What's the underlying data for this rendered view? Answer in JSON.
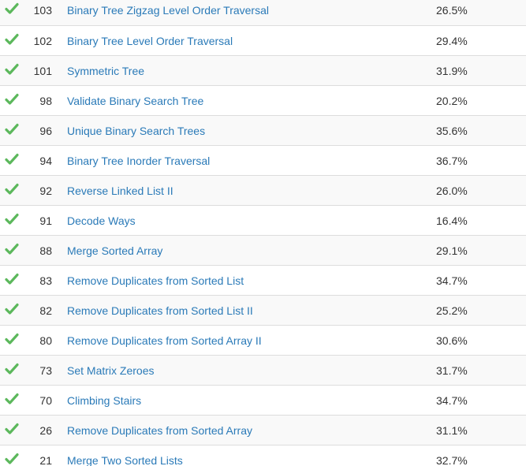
{
  "status_icon": "check-icon",
  "colors": {
    "check": "#5cb85c",
    "link": "#2a7ab8",
    "text": "#333333",
    "row_alt": "#f9f9f9",
    "border": "#dddddd"
  },
  "problems": [
    {
      "number": "103",
      "title": "Binary Tree Zigzag Level Order Traversal",
      "acceptance": "26.5%"
    },
    {
      "number": "102",
      "title": "Binary Tree Level Order Traversal",
      "acceptance": "29.4%"
    },
    {
      "number": "101",
      "title": "Symmetric Tree",
      "acceptance": "31.9%"
    },
    {
      "number": "98",
      "title": "Validate Binary Search Tree",
      "acceptance": "20.2%"
    },
    {
      "number": "96",
      "title": "Unique Binary Search Trees",
      "acceptance": "35.6%"
    },
    {
      "number": "94",
      "title": "Binary Tree Inorder Traversal",
      "acceptance": "36.7%"
    },
    {
      "number": "92",
      "title": "Reverse Linked List II",
      "acceptance": "26.0%"
    },
    {
      "number": "91",
      "title": "Decode Ways",
      "acceptance": "16.4%"
    },
    {
      "number": "88",
      "title": "Merge Sorted Array",
      "acceptance": "29.1%"
    },
    {
      "number": "83",
      "title": "Remove Duplicates from Sorted List",
      "acceptance": "34.7%"
    },
    {
      "number": "82",
      "title": "Remove Duplicates from Sorted List II",
      "acceptance": "25.2%"
    },
    {
      "number": "80",
      "title": "Remove Duplicates from Sorted Array II",
      "acceptance": "30.6%"
    },
    {
      "number": "73",
      "title": "Set Matrix Zeroes",
      "acceptance": "31.7%"
    },
    {
      "number": "70",
      "title": "Climbing Stairs",
      "acceptance": "34.7%"
    },
    {
      "number": "26",
      "title": "Remove Duplicates from Sorted Array",
      "acceptance": "31.1%"
    },
    {
      "number": "21",
      "title": "Merge Two Sorted Lists",
      "acceptance": "32.7%"
    }
  ]
}
